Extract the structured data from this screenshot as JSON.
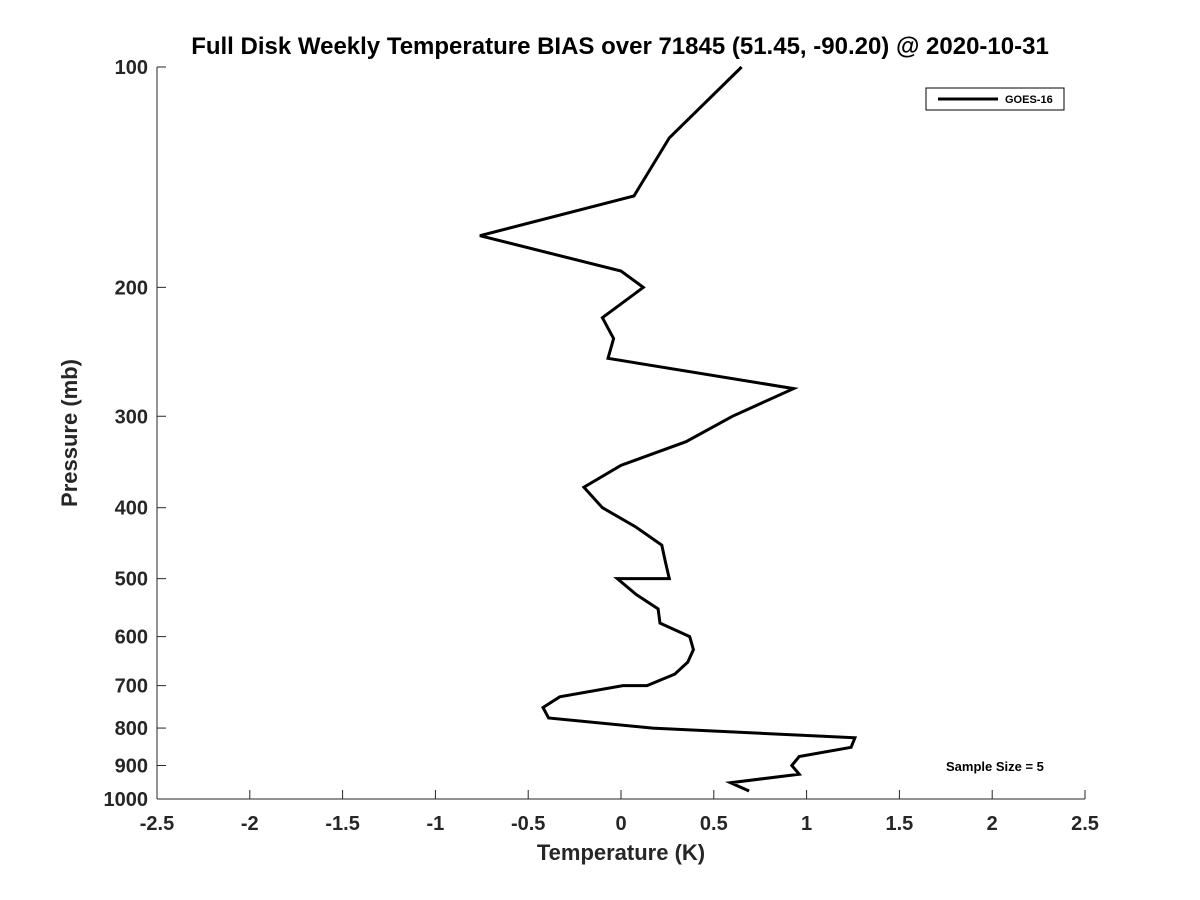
{
  "chart_data": {
    "type": "line",
    "title": "Full Disk Weekly Temperature BIAS over 71845 (51.45, -90.20) @ 2020-10-31",
    "xlabel": "Temperature (K)",
    "ylabel": "Pressure (mb)",
    "xlim": [
      -2.5,
      2.5
    ],
    "ylim": [
      100,
      1000
    ],
    "yscale": "log",
    "y_reversed": true,
    "x_ticks": [
      -2.5,
      -2,
      -1.5,
      -1,
      -0.5,
      0,
      0.5,
      1,
      1.5,
      2,
      2.5
    ],
    "x_tick_labels": [
      "-2.5",
      "-2",
      "-1.5",
      "-1",
      "-0.5",
      "0",
      "0.5",
      "1",
      "1.5",
      "2",
      "2.5"
    ],
    "y_ticks": [
      100,
      200,
      300,
      400,
      500,
      600,
      700,
      800,
      900,
      1000
    ],
    "y_tick_labels": [
      "100",
      "200",
      "300",
      "400",
      "500",
      "600",
      "700",
      "800",
      "900",
      "1000"
    ],
    "grid": false,
    "legend_position": "top-right",
    "series": [
      {
        "name": "GOES-16",
        "color": "#000000",
        "x": [
          0.65,
          0.26,
          0.07,
          -0.76,
          0.0,
          0.12,
          -0.1,
          -0.04,
          -0.07,
          0.93,
          0.6,
          0.35,
          0.0,
          -0.2,
          -0.1,
          0.08,
          0.22,
          0.24,
          0.26,
          0.14,
          -0.02,
          0.08,
          0.2,
          0.21,
          0.37,
          0.39,
          0.36,
          0.29,
          0.14,
          0.01,
          -0.33,
          -0.42,
          -0.39,
          0.17,
          1.26,
          1.24,
          0.96,
          0.92,
          0.96,
          0.59,
          0.69
        ],
        "y": [
          100,
          125,
          150,
          170,
          190,
          200,
          220,
          235,
          250,
          275,
          300,
          325,
          350,
          375,
          400,
          425,
          450,
          475,
          500,
          500,
          500,
          525,
          550,
          575,
          600,
          625,
          650,
          675,
          700,
          700,
          725,
          750,
          775,
          800,
          825,
          850,
          875,
          900,
          925,
          950,
          975
        ]
      }
    ],
    "annotations": [
      "Sample Size = 5"
    ]
  }
}
